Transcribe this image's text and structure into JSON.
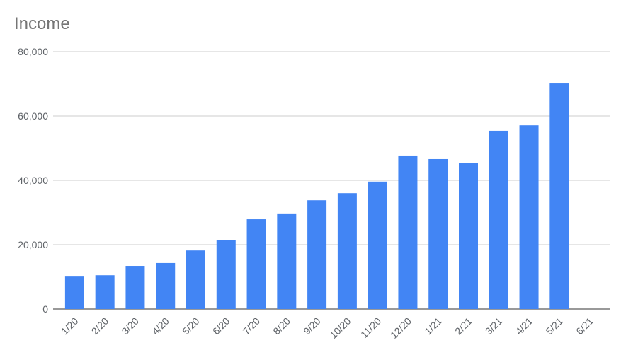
{
  "chart_data": {
    "type": "bar",
    "title": "Income",
    "categories": [
      "1/20",
      "2/20",
      "3/20",
      "4/20",
      "5/20",
      "6/20",
      "7/20",
      "8/20",
      "9/20",
      "10/20",
      "11/20",
      "12/20",
      "1/21",
      "2/21",
      "3/21",
      "4/21",
      "5/21",
      "6/21"
    ],
    "values": [
      10300,
      10500,
      13400,
      14300,
      18200,
      21500,
      27900,
      29700,
      33800,
      36000,
      39600,
      47700,
      46600,
      45300,
      55400,
      57100,
      70100,
      null
    ],
    "color": "#4285f4",
    "ylim": [
      0,
      80000
    ],
    "yticks": [
      0,
      {
        "value": 20000,
        "label": "20,000"
      },
      {
        "value": 40000,
        "label": "40,000"
      },
      {
        "value": 60000,
        "label": "60,000"
      },
      {
        "value": 80000,
        "label": "80,000"
      }
    ],
    "grid": true
  }
}
